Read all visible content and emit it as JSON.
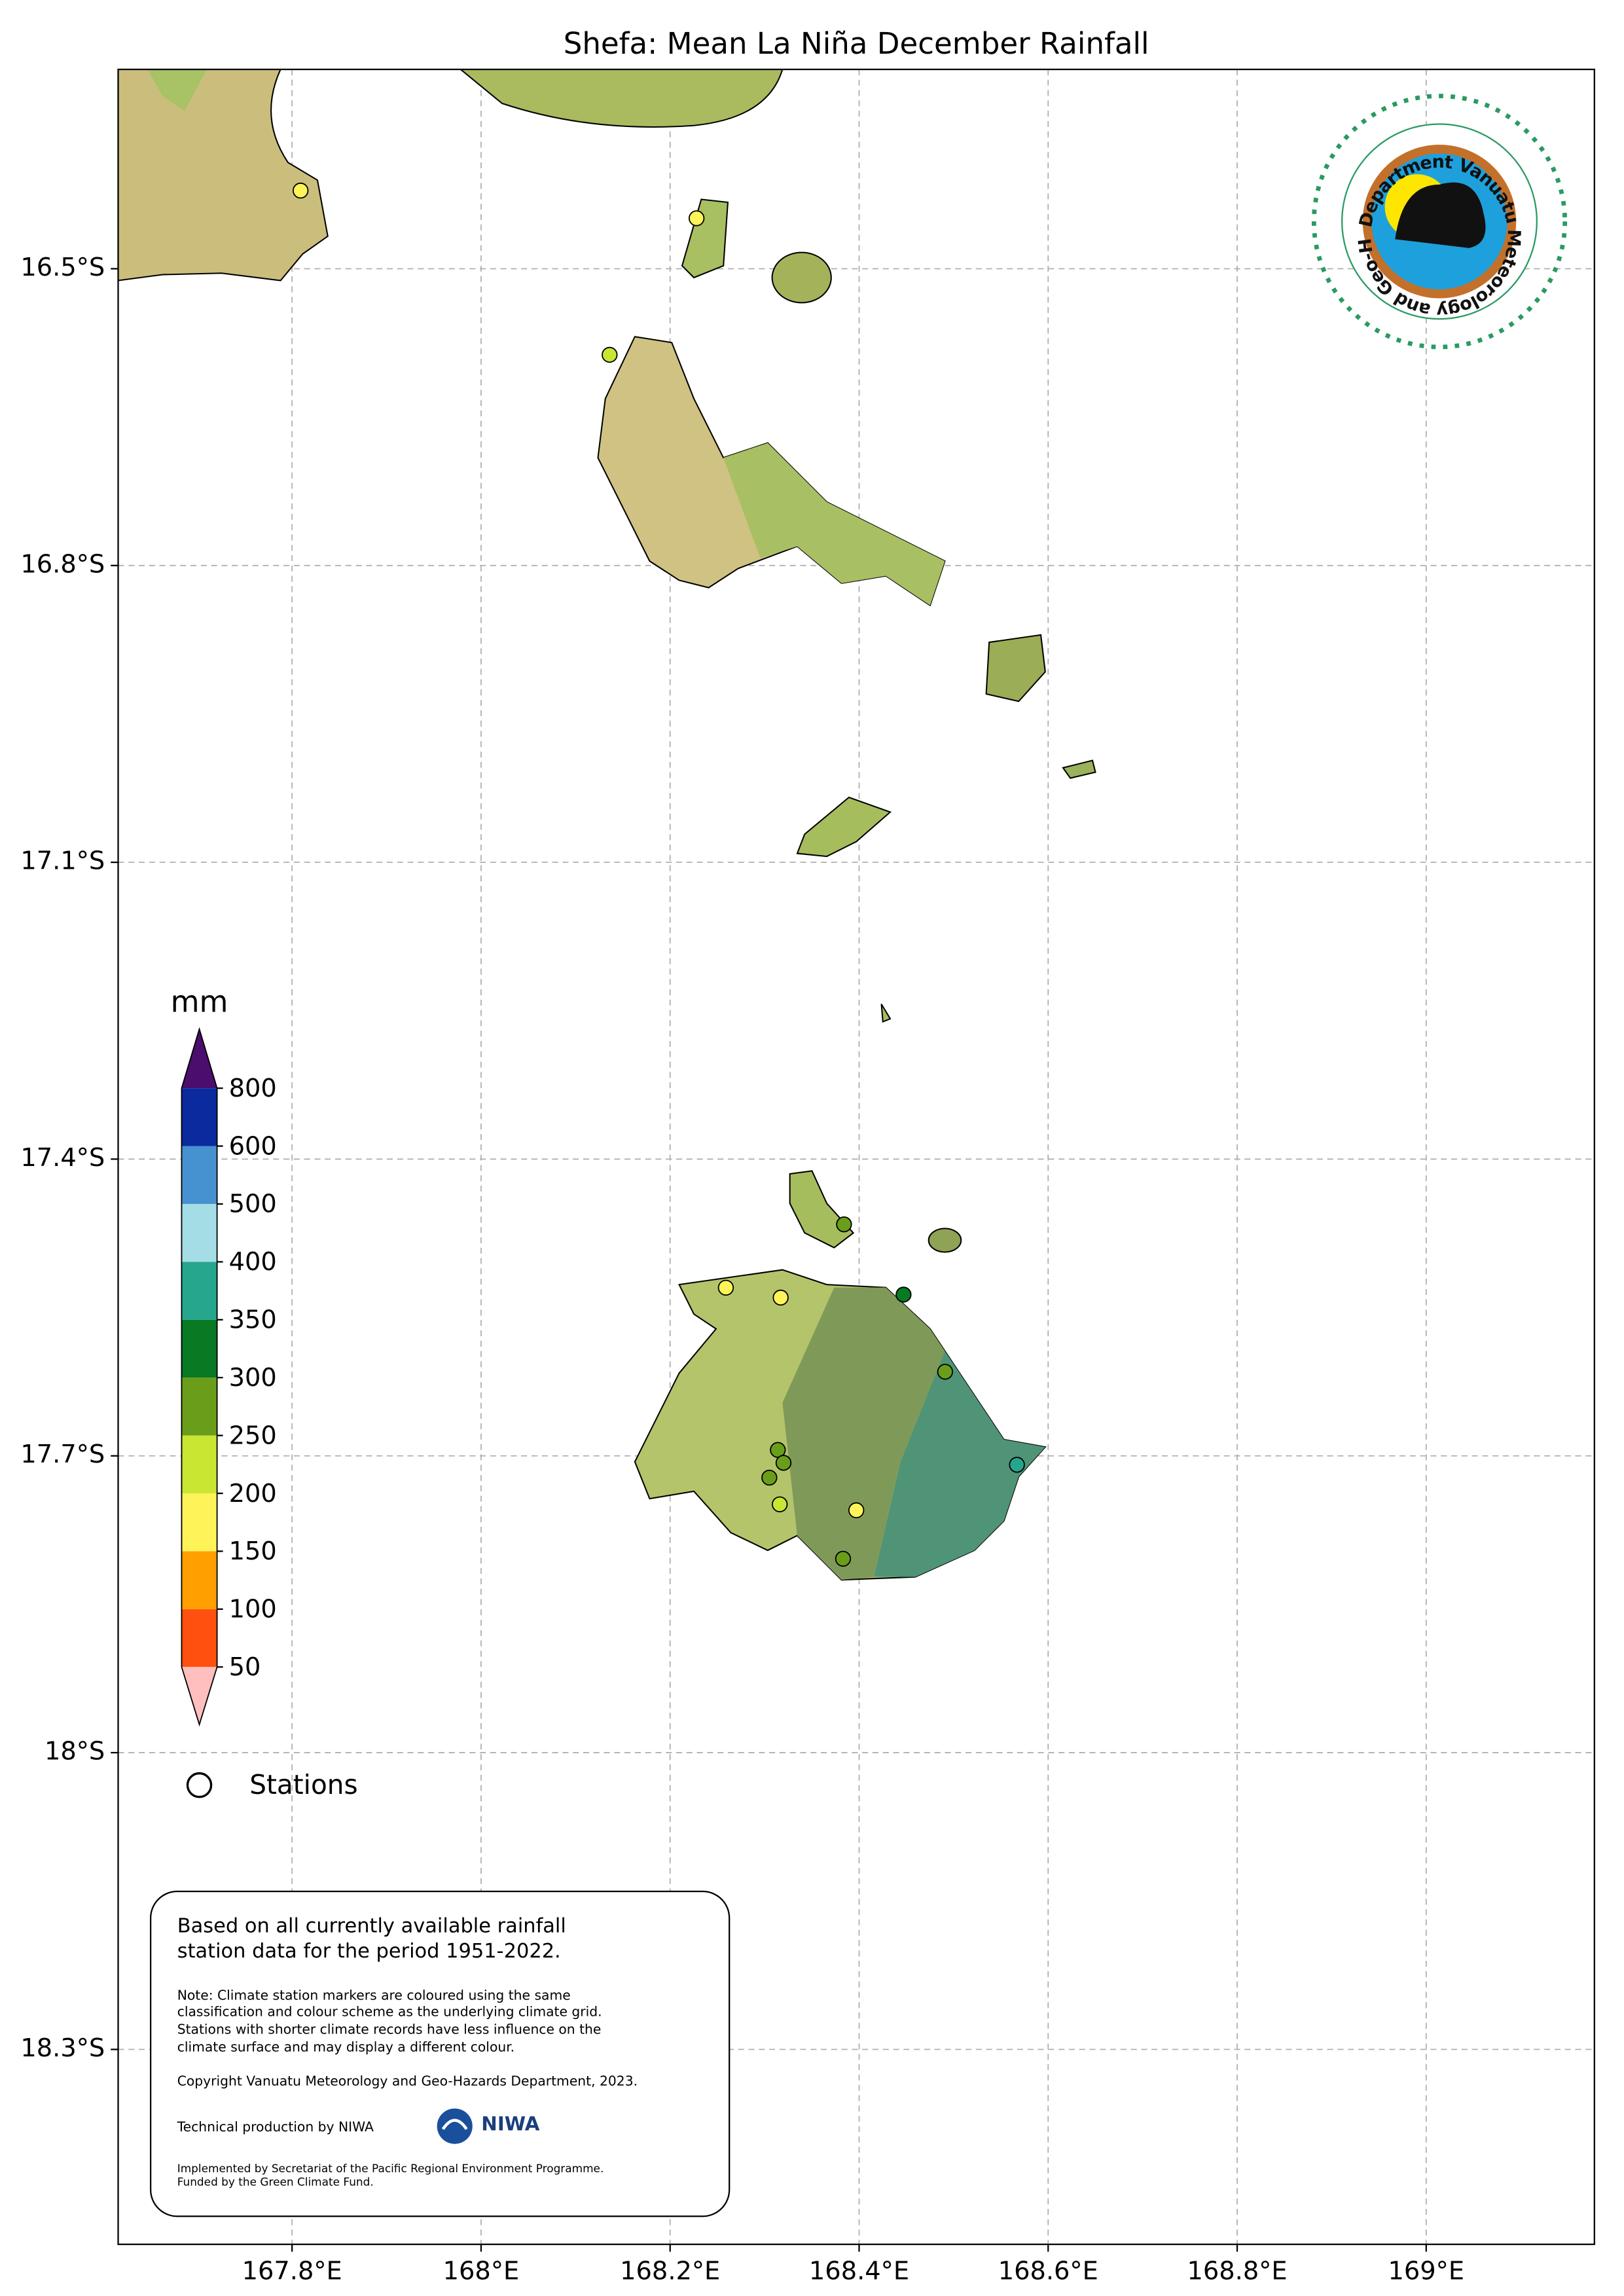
{
  "map": {
    "title": "Shefa: Mean La Niña December Rainfall",
    "xlim": [
      167.616,
      169.178
    ],
    "ylim": [
      -18.497,
      -16.2985
    ],
    "xticks": [
      {
        "value": 167.8,
        "label": "167.8°E"
      },
      {
        "value": 168.0,
        "label": "168°E"
      },
      {
        "value": 168.2,
        "label": "168.2°E"
      },
      {
        "value": 168.4,
        "label": "168.4°E"
      },
      {
        "value": 168.6,
        "label": "168.6°E"
      },
      {
        "value": 168.8,
        "label": "168.8°E"
      },
      {
        "value": 169.0,
        "label": "169°E"
      }
    ],
    "yticks": [
      {
        "value": -16.5,
        "label": "16.5°S"
      },
      {
        "value": -16.8,
        "label": "16.8°S"
      },
      {
        "value": -17.1,
        "label": "17.1°S"
      },
      {
        "value": -17.4,
        "label": "17.4°S"
      },
      {
        "value": -17.7,
        "label": "17.7°S"
      },
      {
        "value": -18.0,
        "label": "18°S"
      },
      {
        "value": -18.3,
        "label": "18.3°S"
      }
    ],
    "grid": true,
    "colorbar": {
      "unit": "mm",
      "levels": [
        50,
        100,
        150,
        200,
        250,
        300,
        350,
        400,
        500,
        600,
        800
      ],
      "colors": [
        "#ff5010",
        "#ff9f00",
        "#fff35a",
        "#c8e632",
        "#6a9e1a",
        "#087a23",
        "#26a68c",
        "#a5dde6",
        "#4692d0",
        "#0a2a9e"
      ],
      "under_color": "#ffbfbf",
      "over_color": "#4b0d6e"
    },
    "legend_station": "Stations",
    "stations": [
      {
        "lon": 167.809,
        "lat": -16.421,
        "color": "#fff35a"
      },
      {
        "lon": 168.228,
        "lat": -16.449,
        "color": "#fff35a"
      },
      {
        "lon": 168.136,
        "lat": -16.587,
        "color": "#c8e632"
      },
      {
        "lon": 168.384,
        "lat": -17.466,
        "color": "#6a9e1a"
      },
      {
        "lon": 168.447,
        "lat": -17.537,
        "color": "#087a23"
      },
      {
        "lon": 168.259,
        "lat": -17.53,
        "color": "#fff35a"
      },
      {
        "lon": 168.317,
        "lat": -17.54,
        "color": "#fff35a"
      },
      {
        "lon": 168.491,
        "lat": -17.615,
        "color": "#6a9e1a"
      },
      {
        "lon": 168.314,
        "lat": -17.694,
        "color": "#6a9e1a"
      },
      {
        "lon": 168.32,
        "lat": -17.707,
        "color": "#6a9e1a"
      },
      {
        "lon": 168.305,
        "lat": -17.722,
        "color": "#6a9e1a"
      },
      {
        "lon": 168.567,
        "lat": -17.709,
        "color": "#26a68c"
      },
      {
        "lon": 168.316,
        "lat": -17.749,
        "color": "#c8e632"
      },
      {
        "lon": 168.397,
        "lat": -17.755,
        "color": "#fff35a"
      },
      {
        "lon": 168.383,
        "lat": -17.804,
        "color": "#6a9e1a"
      }
    ],
    "info_box": {
      "summary": [
        "Based on all currently available rainfall",
        "station data for the period 1951-2022."
      ],
      "note": [
        "Note: Climate station markers are coloured using the same",
        "classification and colour scheme as the underlying climate grid.",
        "Stations with shorter climate records have less influence on the",
        "climate surface and may display a different colour."
      ],
      "copyright": "Copyright Vanuatu Meteorology and Geo-Hazards Department, 2023.",
      "production": "Technical production by NIWA",
      "niwa": "NIWA",
      "funding": [
        "Implemented by Secretariat of the Pacific Regional Environment Programme.",
        "Funded by the Green Climate Fund."
      ]
    },
    "logo_text": "Department Vanuatu Meteorology and Geo-Hazards"
  }
}
